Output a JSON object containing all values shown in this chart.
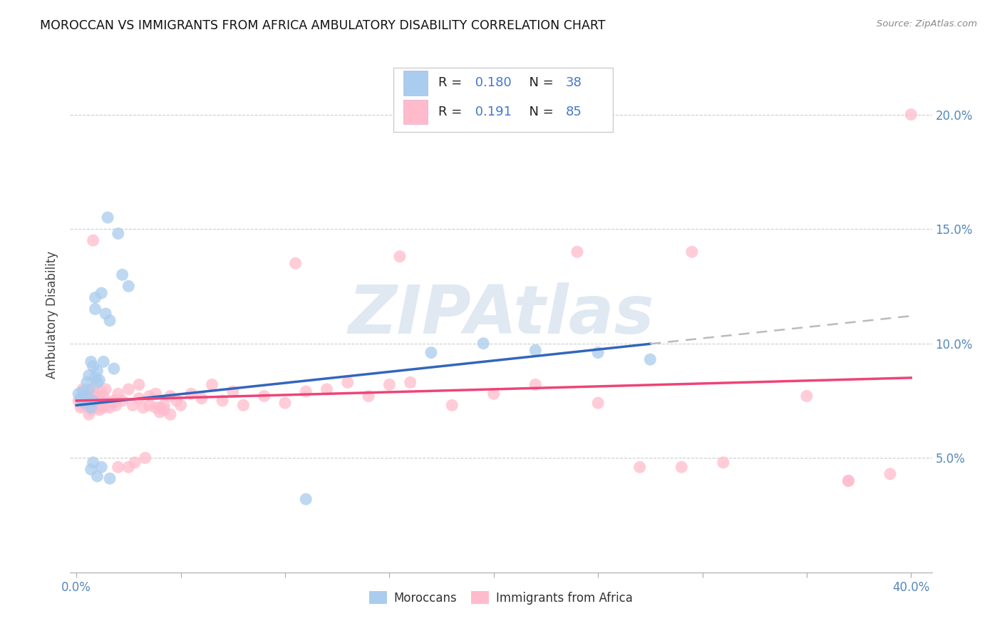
{
  "title": "MOROCCAN VS IMMIGRANTS FROM AFRICA AMBULATORY DISABILITY CORRELATION CHART",
  "source": "Source: ZipAtlas.com",
  "ylabel": "Ambulatory Disability",
  "xlim": [
    -0.003,
    0.41
  ],
  "ylim": [
    0.0,
    0.225
  ],
  "xtick_positions": [
    0.0,
    0.05,
    0.1,
    0.15,
    0.2,
    0.25,
    0.3,
    0.35,
    0.4
  ],
  "xtick_labels": [
    "0.0%",
    "",
    "",
    "",
    "",
    "",
    "",
    "",
    "40.0%"
  ],
  "yticks_right": [
    0.05,
    0.1,
    0.15,
    0.2
  ],
  "ytick_labels_right": [
    "5.0%",
    "10.0%",
    "15.0%",
    "20.0%"
  ],
  "blue_R": 0.18,
  "blue_N": 38,
  "pink_R": 0.191,
  "pink_N": 85,
  "blue_color": "#AACCEE",
  "pink_color": "#FFBBCC",
  "blue_line_color": "#3366BB",
  "pink_line_color": "#EE4477",
  "grey_dash_color": "#BBBBBB",
  "legend_label_blue": "Moroccans",
  "legend_label_pink": "Immigrants from Africa",
  "blue_x": [
    0.001,
    0.002,
    0.003,
    0.004,
    0.005,
    0.005,
    0.006,
    0.006,
    0.007,
    0.007,
    0.008,
    0.008,
    0.009,
    0.009,
    0.009,
    0.01,
    0.01,
    0.011,
    0.012,
    0.013,
    0.014,
    0.015,
    0.016,
    0.018,
    0.02,
    0.022,
    0.025,
    0.11,
    0.17,
    0.195,
    0.22,
    0.25,
    0.275,
    0.007,
    0.008,
    0.01,
    0.012,
    0.016
  ],
  "blue_y": [
    0.078,
    0.076,
    0.079,
    0.074,
    0.077,
    0.083,
    0.08,
    0.086,
    0.072,
    0.092,
    0.075,
    0.09,
    0.085,
    0.115,
    0.12,
    0.083,
    0.088,
    0.084,
    0.122,
    0.092,
    0.113,
    0.155,
    0.11,
    0.089,
    0.148,
    0.13,
    0.125,
    0.032,
    0.096,
    0.1,
    0.097,
    0.096,
    0.093,
    0.045,
    0.048,
    0.042,
    0.046,
    0.041
  ],
  "pink_x": [
    0.001,
    0.002,
    0.003,
    0.003,
    0.004,
    0.005,
    0.005,
    0.006,
    0.006,
    0.007,
    0.007,
    0.008,
    0.008,
    0.009,
    0.009,
    0.01,
    0.01,
    0.011,
    0.011,
    0.012,
    0.012,
    0.013,
    0.013,
    0.014,
    0.014,
    0.015,
    0.016,
    0.017,
    0.018,
    0.019,
    0.02,
    0.022,
    0.025,
    0.027,
    0.03,
    0.03,
    0.032,
    0.035,
    0.038,
    0.04,
    0.042,
    0.045,
    0.048,
    0.05,
    0.055,
    0.06,
    0.065,
    0.07,
    0.075,
    0.08,
    0.09,
    0.1,
    0.11,
    0.12,
    0.13,
    0.14,
    0.15,
    0.16,
    0.18,
    0.2,
    0.22,
    0.25,
    0.27,
    0.29,
    0.31,
    0.35,
    0.37,
    0.39,
    0.02,
    0.025,
    0.028,
    0.033,
    0.035,
    0.038,
    0.04,
    0.042,
    0.045,
    0.4,
    0.155,
    0.105,
    0.24,
    0.295,
    0.37,
    0.006,
    0.008
  ],
  "pink_y": [
    0.075,
    0.072,
    0.073,
    0.08,
    0.077,
    0.073,
    0.079,
    0.072,
    0.075,
    0.071,
    0.076,
    0.074,
    0.08,
    0.073,
    0.078,
    0.072,
    0.077,
    0.071,
    0.075,
    0.073,
    0.079,
    0.072,
    0.077,
    0.074,
    0.08,
    0.073,
    0.072,
    0.074,
    0.075,
    0.073,
    0.078,
    0.075,
    0.08,
    0.073,
    0.076,
    0.082,
    0.072,
    0.077,
    0.078,
    0.072,
    0.073,
    0.077,
    0.075,
    0.073,
    0.078,
    0.076,
    0.082,
    0.075,
    0.079,
    0.073,
    0.077,
    0.074,
    0.079,
    0.08,
    0.083,
    0.077,
    0.082,
    0.083,
    0.073,
    0.078,
    0.082,
    0.074,
    0.046,
    0.046,
    0.048,
    0.077,
    0.04,
    0.043,
    0.046,
    0.046,
    0.048,
    0.05,
    0.073,
    0.072,
    0.07,
    0.071,
    0.069,
    0.2,
    0.138,
    0.135,
    0.14,
    0.14,
    0.04,
    0.069,
    0.145
  ],
  "blue_line_x0": 0.0,
  "blue_line_x_solid_end": 0.275,
  "blue_line_x1": 0.4,
  "blue_line_y0": 0.073,
  "blue_line_y_solid_end": 0.1,
  "blue_line_y1": 0.112,
  "pink_line_x0": 0.0,
  "pink_line_x1": 0.4,
  "pink_line_y0": 0.075,
  "pink_line_y1": 0.085
}
